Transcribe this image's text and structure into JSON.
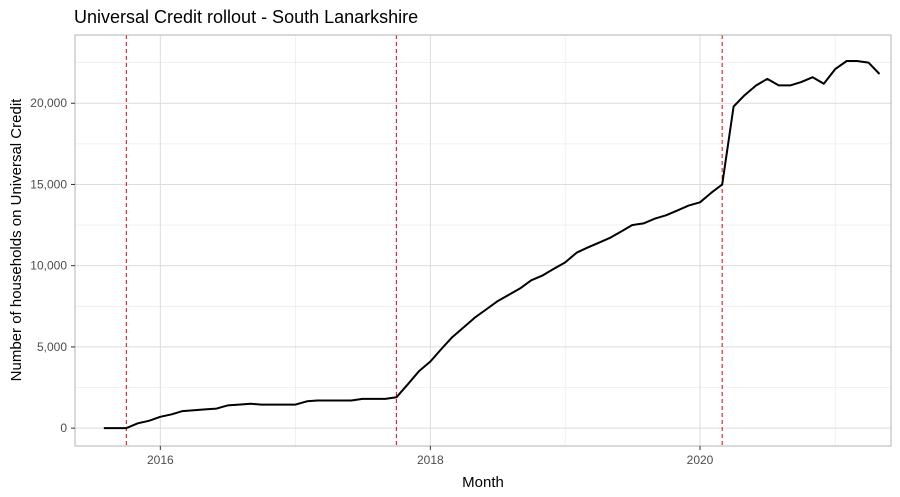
{
  "chart_data": {
    "type": "line",
    "title": "Universal Credit rollout - South Lanarkshire",
    "xlabel": "Month",
    "ylabel": "Number of households on Universal Credit",
    "xlim": [
      "2015-05-15",
      "2021-06-01"
    ],
    "ylim": [
      -1100,
      24200
    ],
    "x_ticks": [
      {
        "date": "2016-01-01",
        "label": "2016"
      },
      {
        "date": "2018-01-01",
        "label": "2018"
      },
      {
        "date": "2020-01-01",
        "label": "2020"
      }
    ],
    "y_ticks": [
      {
        "value": 0,
        "label": "0"
      },
      {
        "value": 5000,
        "label": "5,000"
      },
      {
        "value": 10000,
        "label": "10,000"
      },
      {
        "value": 15000,
        "label": "15,000"
      },
      {
        "value": 20000,
        "label": "20,000"
      }
    ],
    "reference_lines": [
      "2015-10-01",
      "2017-10-01",
      "2020-03-01"
    ],
    "reference_line_color": "#e31a1c",
    "line_color": "#000000",
    "grid": true,
    "legend": "none",
    "series": [
      {
        "x": [
          "2015-08-01",
          "2015-09-01",
          "2015-10-01",
          "2015-11-01",
          "2015-12-01",
          "2016-01-01",
          "2016-02-01",
          "2016-03-01",
          "2016-04-01",
          "2016-05-01",
          "2016-06-01",
          "2016-07-01",
          "2016-08-01",
          "2016-09-01",
          "2016-10-01",
          "2016-11-01",
          "2016-12-01",
          "2017-01-01",
          "2017-02-01",
          "2017-03-01",
          "2017-04-01",
          "2017-05-01",
          "2017-06-01",
          "2017-07-01",
          "2017-08-01",
          "2017-09-01",
          "2017-10-01",
          "2017-11-01",
          "2017-12-01",
          "2018-01-01",
          "2018-02-01",
          "2018-03-01",
          "2018-04-01",
          "2018-05-01",
          "2018-06-01",
          "2018-07-01",
          "2018-08-01",
          "2018-09-01",
          "2018-10-01",
          "2018-11-01",
          "2018-12-01",
          "2019-01-01",
          "2019-02-01",
          "2019-03-01",
          "2019-04-01",
          "2019-05-01",
          "2019-06-01",
          "2019-07-01",
          "2019-08-01",
          "2019-09-01",
          "2019-10-01",
          "2019-11-01",
          "2019-12-01",
          "2020-01-01",
          "2020-02-01",
          "2020-03-01",
          "2020-04-01",
          "2020-05-01",
          "2020-06-01",
          "2020-07-01",
          "2020-08-01",
          "2020-09-01",
          "2020-10-01",
          "2020-11-01",
          "2020-12-01",
          "2021-01-01",
          "2021-02-01",
          "2021-03-01",
          "2021-04-01",
          "2021-05-01"
        ],
        "values": [
          0,
          0,
          0,
          300,
          450,
          700,
          850,
          1050,
          1100,
          1150,
          1200,
          1400,
          1450,
          1500,
          1450,
          1450,
          1450,
          1450,
          1650,
          1700,
          1700,
          1700,
          1700,
          1800,
          1800,
          1800,
          1900,
          2700,
          3500,
          4100,
          4900,
          5600,
          6200,
          6800,
          7300,
          7800,
          8200,
          8600,
          9100,
          9400,
          9800,
          10200,
          10800,
          11100,
          11400,
          11700,
          12100,
          12500,
          12600,
          12900,
          13100,
          13400,
          13700,
          13900,
          14500,
          15000,
          19800,
          20500,
          21100,
          21500,
          21100,
          21100,
          21300,
          21600,
          21200,
          22100,
          22600,
          22600,
          22500,
          21800
        ]
      }
    ]
  }
}
